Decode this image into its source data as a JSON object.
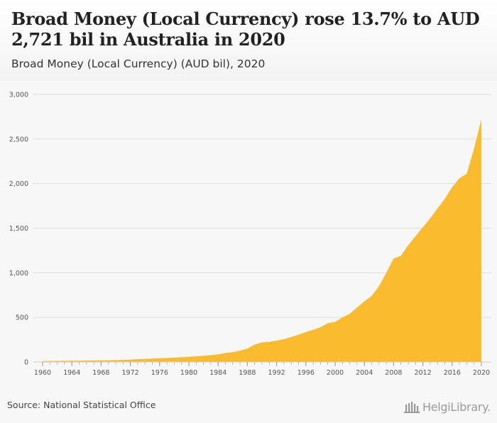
{
  "header": {
    "title": "Broad Money (Local Currency) rose 13.7% to AUD 2,721 bil in Australia in 2020",
    "subtitle": "Broad Money (Local Currency) (AUD bil), 2020"
  },
  "footer": {
    "source": "Source: National Statistical Office",
    "logo_text": "HelgiLibrary."
  },
  "colors": {
    "area": "#fbbb2f",
    "grid": "#dddddd",
    "axis_text": "#555555"
  },
  "chart_data": {
    "type": "area",
    "title": "Broad Money (Local Currency) rose 13.7% to AUD 2,721 bil in Australia in 2020",
    "subtitle": "Broad Money (Local Currency) (AUD bil), 2020",
    "xlabel": "",
    "ylabel": "",
    "ylim": [
      0,
      3000
    ],
    "yticks": [
      0,
      500,
      1000,
      1500,
      2000,
      2500,
      3000
    ],
    "ytick_labels": [
      "0",
      "500",
      "1,000",
      "1,500",
      "2,000",
      "2,500",
      "3,000"
    ],
    "xticks": [
      1960,
      1964,
      1968,
      1972,
      1976,
      1980,
      1984,
      1988,
      1992,
      1996,
      2000,
      2004,
      2008,
      2012,
      2016,
      2020
    ],
    "grid": true,
    "legend": "none",
    "x": [
      1960,
      1961,
      1962,
      1963,
      1964,
      1965,
      1966,
      1967,
      1968,
      1969,
      1970,
      1971,
      1972,
      1973,
      1974,
      1975,
      1976,
      1977,
      1978,
      1979,
      1980,
      1981,
      1982,
      1983,
      1984,
      1985,
      1986,
      1987,
      1988,
      1989,
      1990,
      1991,
      1992,
      1993,
      1994,
      1995,
      1996,
      1997,
      1998,
      1999,
      2000,
      2001,
      2002,
      2003,
      2004,
      2005,
      2006,
      2007,
      2008,
      2009,
      2010,
      2011,
      2012,
      2013,
      2014,
      2015,
      2016,
      2017,
      2018,
      2019,
      2020
    ],
    "values": [
      10,
      11,
      12,
      13,
      14,
      15,
      16,
      17,
      18,
      19,
      21,
      23,
      27,
      31,
      34,
      38,
      42,
      45,
      49,
      53,
      59,
      63,
      70,
      77,
      86,
      100,
      110,
      126,
      150,
      195,
      220,
      225,
      240,
      255,
      280,
      305,
      335,
      360,
      390,
      435,
      450,
      500,
      540,
      610,
      680,
      740,
      850,
      1000,
      1160,
      1190,
      1310,
      1410,
      1510,
      1610,
      1720,
      1830,
      1960,
      2060,
      2110,
      2393,
      2721
    ]
  }
}
